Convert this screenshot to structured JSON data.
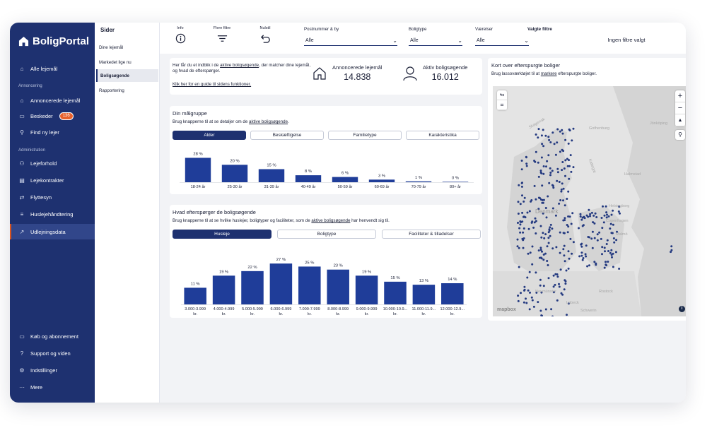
{
  "sidebar": {
    "brand": "BoligPortal",
    "home": "Alle lejemål",
    "section1": "Annoncering",
    "items1": [
      {
        "label": "Annoncerede lejemål",
        "icon": "house-icon"
      },
      {
        "label": "Beskeder",
        "icon": "chat-icon",
        "badge": "136"
      },
      {
        "label": "Find ny lejer",
        "icon": "search-icon"
      }
    ],
    "section2": "Administration",
    "items2": [
      {
        "label": "Lejeforhold",
        "icon": "people-icon"
      },
      {
        "label": "Lejekontrakter",
        "icon": "document-icon"
      },
      {
        "label": "Flyttesyn",
        "icon": "arrows-icon"
      },
      {
        "label": "Huslejehåndtering",
        "icon": "database-icon"
      },
      {
        "label": "Udlejningsdata",
        "icon": "trend-icon"
      }
    ],
    "bottom": [
      {
        "label": "Køb og abonnement",
        "icon": "card-icon"
      },
      {
        "label": "Support og viden",
        "icon": "help-icon"
      },
      {
        "label": "Indstillinger",
        "icon": "gear-icon"
      },
      {
        "label": "Mere",
        "icon": "more-icon"
      }
    ]
  },
  "pages": {
    "title": "Sider",
    "items": [
      "Dine lejemål",
      "Markedet lige nu",
      "Boligsøgende",
      "Rapportering"
    ]
  },
  "filters": {
    "info": "Info",
    "more": "Flere filtre",
    "reset": "Nulstil",
    "postal_label": "Postnummer & by",
    "postal_value": "Alle",
    "type_label": "Boligtype",
    "type_value": "Alle",
    "rooms_label": "Værelser",
    "rooms_value": "Alle",
    "chosen_label": "Valgte filtre",
    "chosen_value": "Ingen filtre valgt"
  },
  "intro": {
    "text1": "Her får du et indblik i de ",
    "link1": "aktive boligsøgende",
    "text2": ", der matcher dine lejemål, og hvad de efterspørger.",
    "guide": "Klik her for en guide til sidens funktioner.",
    "stat1_label": "Annoncerede lejemål",
    "stat1_value": "14.838",
    "stat2_label": "Aktiv boligsøgende",
    "stat2_value": "16.012"
  },
  "target": {
    "title": "Din målgruppe",
    "text": "Brug knapperne til at se detaljer om de ",
    "link": "aktive boligsøgende",
    "tabs": [
      "Alder",
      "Beskæftigelse",
      "Familietype",
      "Karakteristika"
    ]
  },
  "demand": {
    "title": "Hvad efterspørger de boligsøgende",
    "text1": "Brug knapperne til at se hvilke huslejer, boligtyper og faciliteter, som de ",
    "link": "aktive boligsøgende",
    "text2": " har henvendt sig til.",
    "tabs": [
      "Husleje",
      "Boligtype",
      "Faciliteter & tilladelser"
    ]
  },
  "map": {
    "title": "Kort over efterspurgte boliger",
    "text1": "Brug lassoværktøjet til at ",
    "link": "markere",
    "text2": " efterspurgte boliger.",
    "labels": [
      "Skagerrak",
      "Gothenburg",
      "Jönköping",
      "Kattegat",
      "Halmstad",
      "Denmark",
      "Helsingborg",
      "Copenhagen",
      "Malmö",
      "Neumünster",
      "Rostock",
      "Lübeck",
      "Schwerin"
    ],
    "attribution": "mapbox",
    "zoom_in": "+",
    "zoom_out": "−",
    "compass": "▲"
  },
  "chart_data": [
    {
      "type": "bar",
      "categories": [
        "18-24 år",
        "25-30 år",
        "31-39 år",
        "40-49 år",
        "50-59 år",
        "60-69 år",
        "70-79 år",
        "80+ år"
      ],
      "values": [
        28,
        20,
        15,
        8,
        6,
        3,
        1,
        0
      ],
      "labels": [
        "28 %",
        "20 %",
        "15 %",
        "8 %",
        "6 %",
        "3 %",
        "1 %",
        "0 %"
      ],
      "ylim": [
        0,
        30
      ],
      "color": "#1f3d99"
    },
    {
      "type": "bar",
      "categories": [
        [
          "3.000-3.999",
          "kr."
        ],
        [
          "4.000-4.999",
          "kr."
        ],
        [
          "5.000-5.999",
          "kr."
        ],
        [
          "6.000-6.999",
          "kr."
        ],
        [
          "7.000-7.999",
          "kr."
        ],
        [
          "8.000-8.999",
          "kr."
        ],
        [
          "9.000-9.999",
          "kr."
        ],
        [
          "10.000-10.9...",
          "kr."
        ],
        [
          "11.000-11.9...",
          "kr."
        ],
        [
          "12.000-12.9...",
          "kr."
        ]
      ],
      "values": [
        11,
        19,
        22,
        27,
        25,
        23,
        19,
        15,
        13,
        14
      ],
      "labels": [
        "11 %",
        "19 %",
        "22 %",
        "27 %",
        "25 %",
        "23 %",
        "19 %",
        "15 %",
        "13 %",
        "14 %"
      ],
      "ylim": [
        0,
        28
      ],
      "color": "#1f3d99"
    }
  ]
}
